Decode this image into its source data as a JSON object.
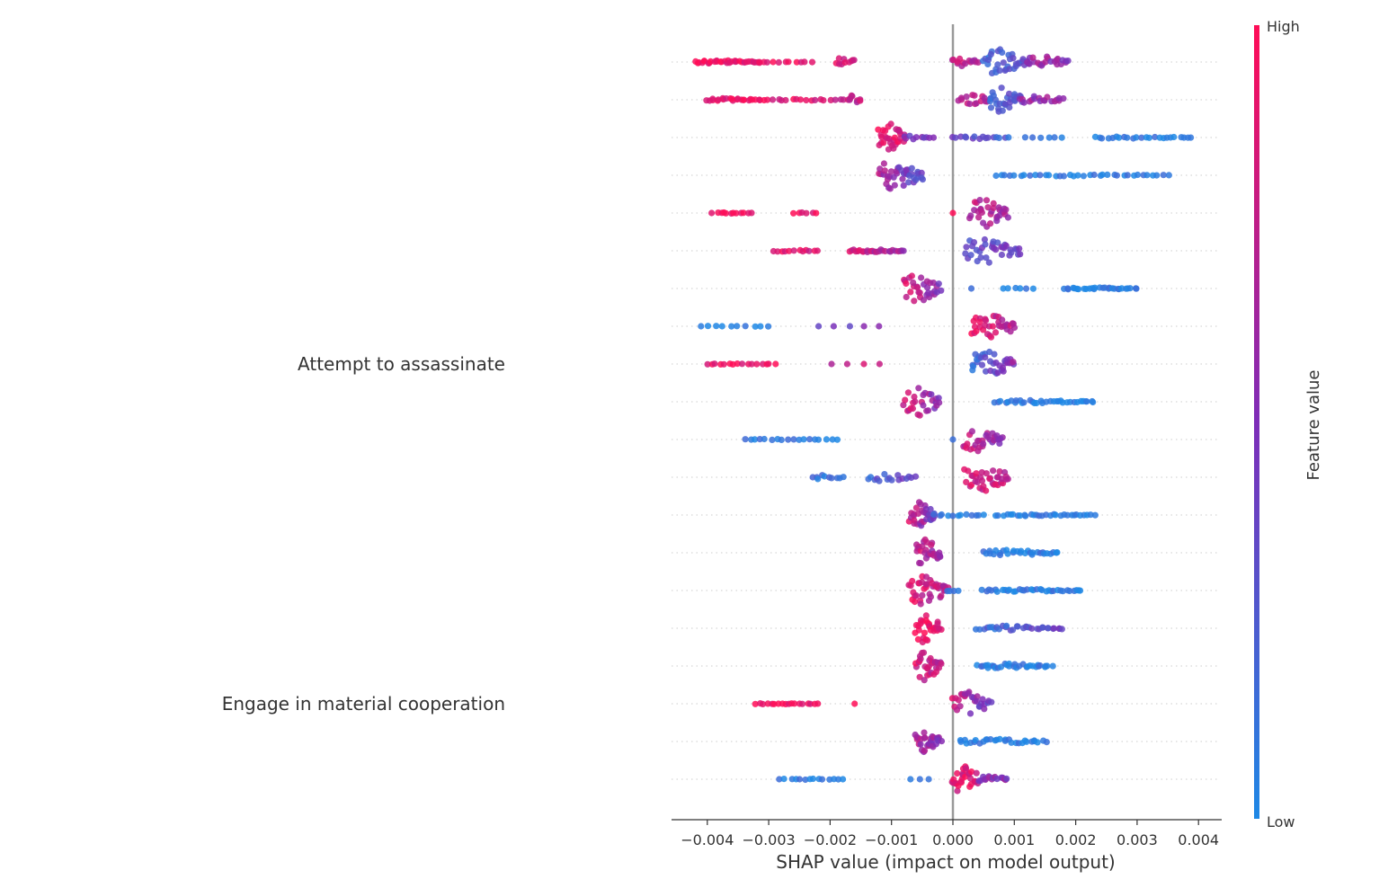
{
  "chart_data": {
    "type": "scatter",
    "subtype": "shap-beeswarm",
    "xlabel": "SHAP value (impact on model output)",
    "xlim": [
      -0.0045,
      0.0044
    ],
    "xticks": [
      -0.004,
      -0.003,
      -0.002,
      -0.001,
      0.0,
      0.001,
      0.002,
      0.003,
      0.004
    ],
    "xtick_labels": [
      "−0.004",
      "−0.003",
      "−0.002",
      "−0.001",
      "0.000",
      "0.001",
      "0.002",
      "0.003",
      "0.004"
    ],
    "grid": "horizontal dotted per feature row",
    "colorbar": {
      "title": "Feature value",
      "high_label": "High",
      "low_label": "Low",
      "high_color": "#FF0D57",
      "mid_color": "#7E2DB8",
      "low_color": "#1E88E5"
    },
    "zero_line_color": "#999999",
    "features": [
      {
        "label": "",
        "segments": [
          [
            -0.0042,
            -0.0031,
            0.95,
            0.9,
            34,
            0.4
          ],
          [
            -0.003,
            -0.0023,
            0.95,
            0.85,
            9,
            0.1
          ],
          [
            -0.0019,
            -0.0016,
            0.85,
            0.75,
            10,
            1.2
          ],
          [
            0.0,
            0.0004,
            0.75,
            0.7,
            14,
            0.8
          ],
          [
            0.0005,
            0.0012,
            0.15,
            0.35,
            34,
            2.6
          ],
          [
            0.0012,
            0.0019,
            0.6,
            0.55,
            22,
            1.2
          ]
        ]
      },
      {
        "label": "",
        "segments": [
          [
            -0.004,
            -0.0031,
            0.95,
            0.9,
            24,
            0.3
          ],
          [
            -0.003,
            -0.0017,
            0.9,
            0.85,
            18,
            0.2
          ],
          [
            -0.0017,
            -0.0015,
            0.8,
            0.75,
            8,
            1.0
          ],
          [
            0.0001,
            0.0006,
            0.75,
            0.7,
            16,
            1.2
          ],
          [
            0.0006,
            0.0011,
            0.15,
            0.3,
            28,
            2.4
          ],
          [
            0.0011,
            0.0018,
            0.6,
            0.55,
            18,
            0.8
          ]
        ]
      },
      {
        "label": "",
        "segments": [
          [
            -0.0012,
            -0.0008,
            0.95,
            0.85,
            30,
            3.2
          ],
          [
            -0.0008,
            -0.0003,
            0.5,
            0.4,
            10,
            0.4
          ],
          [
            0.0,
            0.0009,
            0.4,
            0.2,
            16,
            0.3
          ],
          [
            0.0012,
            0.0018,
            0.2,
            0.1,
            6,
            0.1
          ],
          [
            0.0023,
            0.0039,
            0.05,
            0.05,
            24,
            0.2
          ]
        ]
      },
      {
        "label": "",
        "segments": [
          [
            -0.0012,
            -0.0005,
            0.7,
            0.3,
            40,
            3.0
          ],
          [
            0.0007,
            0.0035,
            0.05,
            0.05,
            36,
            0.2
          ]
        ]
      },
      {
        "label": "",
        "segments": [
          [
            -0.0039,
            -0.0033,
            0.95,
            0.95,
            12,
            0.1
          ],
          [
            -0.0026,
            -0.0022,
            0.95,
            0.95,
            6,
            0.1
          ],
          [
            0.0,
            0.0,
            0.95,
            0.95,
            1,
            0.0
          ],
          [
            0.0003,
            0.0009,
            0.75,
            0.6,
            32,
            2.8
          ]
        ]
      },
      {
        "label": "",
        "segments": [
          [
            -0.0029,
            -0.0022,
            0.95,
            0.85,
            12,
            0.2
          ],
          [
            -0.0017,
            -0.0008,
            0.85,
            0.6,
            26,
            0.3
          ],
          [
            0.0002,
            0.0011,
            0.3,
            0.45,
            36,
            2.6
          ]
        ]
      },
      {
        "label": "",
        "segments": [
          [
            -0.0008,
            -0.0002,
            0.85,
            0.5,
            32,
            2.8
          ],
          [
            0.0003,
            0.0003,
            0.05,
            0.05,
            1,
            0.0
          ],
          [
            0.0008,
            0.0013,
            0.05,
            0.05,
            6,
            0.1
          ],
          [
            0.0018,
            0.003,
            0.05,
            0.05,
            28,
            0.2
          ]
        ]
      },
      {
        "label": "",
        "segments": [
          [
            -0.0041,
            -0.003,
            0.05,
            0.05,
            10,
            0.1
          ],
          [
            -0.0022,
            -0.0012,
            0.3,
            0.6,
            5,
            0.0
          ],
          [
            0.0003,
            0.001,
            0.9,
            0.7,
            36,
            2.6
          ]
        ]
      },
      {
        "label": "Attempt to assassinate",
        "segments": [
          [
            -0.004,
            -0.0029,
            0.95,
            0.95,
            16,
            0.1
          ],
          [
            -0.002,
            -0.0012,
            0.7,
            0.85,
            4,
            0.0
          ],
          [
            0.0003,
            0.001,
            0.15,
            0.55,
            36,
            2.6
          ]
        ]
      },
      {
        "label": "",
        "segments": [
          [
            -0.0008,
            -0.0002,
            0.85,
            0.5,
            28,
            2.8
          ],
          [
            0.0007,
            0.0023,
            0.05,
            0.05,
            34,
            0.3
          ]
        ]
      },
      {
        "label": "",
        "segments": [
          [
            -0.0034,
            -0.0019,
            0.05,
            0.05,
            18,
            0.1
          ],
          [
            0.0,
            0.0,
            0.05,
            0.05,
            1,
            0.0
          ],
          [
            0.0002,
            0.0008,
            0.8,
            0.5,
            30,
            2.4
          ]
        ]
      },
      {
        "label": "",
        "segments": [
          [
            -0.0023,
            -0.0018,
            0.1,
            0.1,
            10,
            0.4
          ],
          [
            -0.0014,
            -0.0006,
            0.2,
            0.45,
            16,
            0.8
          ],
          [
            0.0002,
            0.0009,
            0.85,
            0.75,
            36,
            3.0
          ]
        ]
      },
      {
        "label": "",
        "segments": [
          [
            -0.0007,
            -0.0003,
            0.8,
            0.4,
            30,
            2.6
          ],
          [
            -0.0003,
            0.0005,
            0.05,
            0.1,
            12,
            0.2
          ],
          [
            0.0007,
            0.0023,
            0.05,
            0.05,
            30,
            0.2
          ]
        ]
      },
      {
        "label": "",
        "segments": [
          [
            -0.0006,
            -0.0002,
            0.8,
            0.6,
            28,
            2.6
          ],
          [
            0.0005,
            0.0017,
            0.05,
            0.05,
            30,
            0.6
          ]
        ]
      },
      {
        "label": "",
        "segments": [
          [
            -0.0007,
            -0.0001,
            0.9,
            0.7,
            40,
            3.0
          ],
          [
            -0.0001,
            0.0001,
            0.05,
            0.05,
            4,
            0.2
          ],
          [
            0.0005,
            0.0021,
            0.05,
            0.05,
            34,
            0.3
          ]
        ]
      },
      {
        "label": "",
        "segments": [
          [
            -0.0006,
            -0.0002,
            0.95,
            0.85,
            30,
            3.0
          ],
          [
            0.0004,
            0.0018,
            0.15,
            0.35,
            32,
            0.5
          ]
        ]
      },
      {
        "label": "",
        "segments": [
          [
            -0.0006,
            -0.0002,
            0.85,
            0.75,
            30,
            2.8
          ],
          [
            0.0004,
            0.0016,
            0.05,
            0.05,
            32,
            0.5
          ]
        ]
      },
      {
        "label": "Engage in material cooperation",
        "segments": [
          [
            -0.0032,
            -0.0022,
            0.95,
            0.95,
            18,
            0.1
          ],
          [
            -0.0016,
            -0.0016,
            0.95,
            0.95,
            1,
            0.0
          ],
          [
            0.0,
            0.0006,
            0.8,
            0.35,
            28,
            2.4
          ]
        ]
      },
      {
        "label": "",
        "segments": [
          [
            -0.0006,
            -0.0002,
            0.7,
            0.55,
            30,
            2.6
          ],
          [
            0.0001,
            0.0015,
            0.05,
            0.05,
            30,
            0.5
          ]
        ]
      },
      {
        "label": "",
        "segments": [
          [
            -0.0028,
            -0.0018,
            0.05,
            0.05,
            14,
            0.1
          ],
          [
            -0.0007,
            -0.0004,
            0.05,
            0.05,
            3,
            0.0
          ],
          [
            0.0,
            0.0004,
            0.9,
            0.85,
            30,
            3.2
          ],
          [
            0.0004,
            0.0009,
            0.55,
            0.5,
            16,
            0.6
          ]
        ]
      }
    ]
  }
}
